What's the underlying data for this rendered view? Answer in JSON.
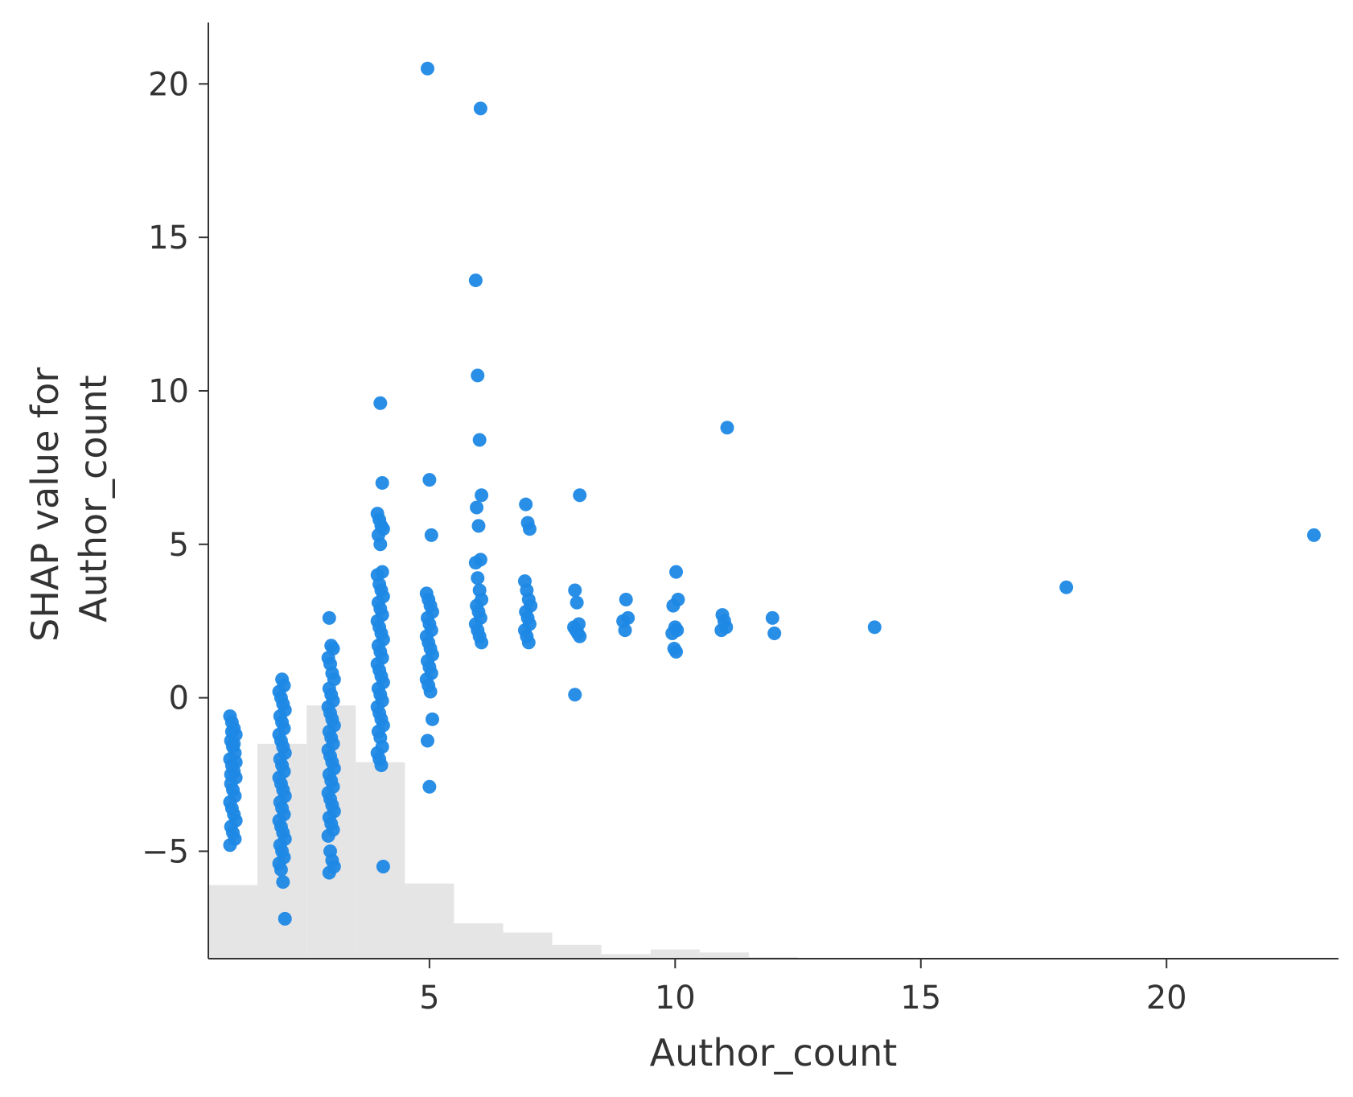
{
  "chart_data": {
    "type": "scatter",
    "xlabel": "Author_count",
    "ylabel_lines": [
      "SHAP value for",
      "Author_count"
    ],
    "xlim": [
      0.5,
      23.5
    ],
    "ylim": [
      -8.5,
      22
    ],
    "x_ticks": [
      5,
      10,
      15,
      20
    ],
    "x_tick_labels": [
      "5",
      "10",
      "15",
      "20"
    ],
    "y_ticks": [
      -5,
      0,
      5,
      10,
      15,
      20
    ],
    "y_tick_labels": [
      "−5",
      "0",
      "5",
      "10",
      "15",
      "20"
    ],
    "grid": false,
    "point_color": "#1E88E5",
    "histogram_color": "#E5E5E5",
    "histogram": {
      "bins": [
        {
          "x0": 0.5,
          "x1": 1.5,
          "top": -6.1
        },
        {
          "x0": 1.5,
          "x1": 2.5,
          "top": -1.5
        },
        {
          "x0": 2.5,
          "x1": 3.5,
          "top": -0.25
        },
        {
          "x0": 3.5,
          "x1": 4.5,
          "top": -2.1
        },
        {
          "x0": 4.5,
          "x1": 5.5,
          "top": -6.05
        },
        {
          "x0": 5.5,
          "x1": 6.5,
          "top": -7.35
        },
        {
          "x0": 6.5,
          "x1": 7.5,
          "top": -7.65
        },
        {
          "x0": 7.5,
          "x1": 8.5,
          "top": -8.05
        },
        {
          "x0": 8.5,
          "x1": 9.5,
          "top": -8.35
        },
        {
          "x0": 9.5,
          "x1": 10.5,
          "top": -8.2
        },
        {
          "x0": 10.5,
          "x1": 11.5,
          "top": -8.3
        },
        {
          "x0": 11.5,
          "x1": 12.5,
          "top": -8.45
        }
      ]
    },
    "points": {
      "series": [
        {
          "x": 1,
          "y": [
            -0.6,
            -0.8,
            -1.0,
            -1.2,
            -1.4,
            -1.6,
            -1.8,
            -2.0,
            -2.2,
            -2.4,
            -2.6,
            -2.8,
            -3.0,
            -3.2,
            -3.4,
            -3.6,
            -3.8,
            -4.0,
            -4.2,
            -4.4,
            -4.6,
            -4.8,
            -1.1,
            -1.5,
            -2.1,
            -2.5
          ]
        },
        {
          "x": 2,
          "y": [
            0.6,
            0.4,
            0.2,
            0.0,
            -0.2,
            -0.4,
            -0.6,
            -0.8,
            -1.0,
            -1.2,
            -1.4,
            -1.6,
            -1.8,
            -2.0,
            -2.2,
            -2.4,
            -2.6,
            -2.8,
            -3.0,
            -3.2,
            -3.4,
            -3.6,
            -3.8,
            -4.0,
            -4.2,
            -4.4,
            -4.6,
            -4.8,
            -5.0,
            -5.2,
            -5.4,
            -5.6,
            -6.0,
            -7.2
          ]
        },
        {
          "x": 3,
          "y": [
            2.6,
            1.7,
            1.6,
            1.3,
            1.1,
            0.8,
            0.6,
            0.3,
            0.1,
            -0.1,
            -0.3,
            -0.5,
            -0.7,
            -0.9,
            -1.1,
            -1.3,
            -1.5,
            -1.7,
            -1.9,
            -2.1,
            -2.3,
            -2.5,
            -2.7,
            -2.9,
            -3.1,
            -3.3,
            -3.5,
            -3.7,
            -3.9,
            -4.1,
            -4.3,
            -4.5,
            -5.0,
            -5.3,
            -5.5,
            -5.7
          ]
        },
        {
          "x": 4,
          "y": [
            9.6,
            7.0,
            6.0,
            5.8,
            5.6,
            5.5,
            5.3,
            5.0,
            4.1,
            4.0,
            3.7,
            3.5,
            3.3,
            3.1,
            2.9,
            2.7,
            2.5,
            2.3,
            2.1,
            1.9,
            1.7,
            1.5,
            1.3,
            1.1,
            0.9,
            0.7,
            0.5,
            0.3,
            0.1,
            -0.1,
            -0.3,
            -0.5,
            -0.7,
            -0.9,
            -1.1,
            -1.3,
            -1.6,
            -1.8,
            -2.0,
            -2.2,
            -5.5
          ]
        },
        {
          "x": 5,
          "y": [
            20.5,
            7.1,
            5.3,
            3.4,
            3.2,
            3.0,
            2.8,
            2.6,
            2.4,
            2.2,
            2.0,
            1.8,
            1.6,
            1.4,
            1.2,
            1.0,
            0.8,
            0.6,
            0.4,
            0.2,
            -0.7,
            -1.4,
            -2.9
          ]
        },
        {
          "x": 6,
          "y": [
            19.2,
            13.6,
            10.5,
            8.4,
            6.6,
            6.2,
            5.6,
            4.5,
            4.4,
            3.9,
            3.5,
            3.2,
            3.0,
            2.8,
            2.6,
            2.4,
            2.2,
            2.0,
            1.8
          ]
        },
        {
          "x": 7,
          "y": [
            6.3,
            5.7,
            5.5,
            3.8,
            3.5,
            3.2,
            3.0,
            2.8,
            2.6,
            2.4,
            2.2,
            2.0,
            1.8
          ]
        },
        {
          "x": 8,
          "y": [
            6.6,
            3.5,
            3.1,
            2.4,
            2.3,
            2.2,
            2.1,
            2.0,
            0.1
          ]
        },
        {
          "x": 9,
          "y": [
            3.2,
            2.6,
            2.5,
            2.2
          ]
        },
        {
          "x": 10,
          "y": [
            4.1,
            3.2,
            3.0,
            2.3,
            2.2,
            2.1,
            1.6,
            1.5
          ]
        },
        {
          "x": 11,
          "y": [
            8.8,
            2.7,
            2.5,
            2.3,
            2.2
          ]
        },
        {
          "x": 12,
          "y": [
            2.6,
            2.1
          ]
        },
        {
          "x": 14,
          "y": [
            2.3
          ]
        },
        {
          "x": 18,
          "y": [
            3.6
          ]
        },
        {
          "x": 23,
          "y": [
            5.3
          ]
        }
      ]
    }
  }
}
